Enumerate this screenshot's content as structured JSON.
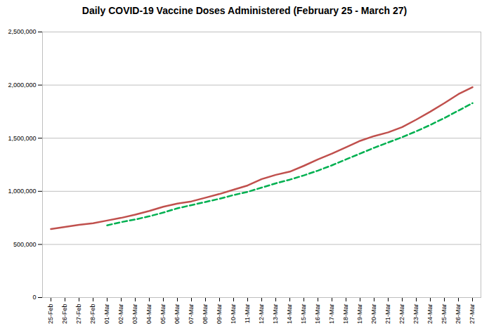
{
  "chart_data": {
    "type": "line",
    "title": "Daily COVID-19 Vaccine Doses Administered (February 25 - March 27)",
    "categories": [
      "25-Feb",
      "26-Feb",
      "27-Feb",
      "28-Feb",
      "01-Mar",
      "02-Mar",
      "03-Mar",
      "04-Mar",
      "05-Mar",
      "06-Mar",
      "07-Mar",
      "08-Mar",
      "09-Mar",
      "10-Mar",
      "11-Mar",
      "12-Mar",
      "13-Mar",
      "14-Mar",
      "15-Mar",
      "16-Mar",
      "17-Mar",
      "18-Mar",
      "19-Mar",
      "20-Mar",
      "21-Mar",
      "22-Mar",
      "23-Mar",
      "24-Mar",
      "25-Mar",
      "26-Mar",
      "27-Mar"
    ],
    "series": [
      {
        "color": "#c0504d",
        "line_style": "solid",
        "values": [
          645000,
          665000,
          685000,
          700000,
          725000,
          750000,
          780000,
          815000,
          855000,
          885000,
          905000,
          940000,
          975000,
          1015000,
          1055000,
          1115000,
          1155000,
          1185000,
          1240000,
          1300000,
          1355000,
          1415000,
          1475000,
          1520000,
          1555000,
          1605000,
          1675000,
          1750000,
          1830000,
          1915000,
          1980000
        ]
      },
      {
        "color": "#00b050",
        "line_style": "dashed",
        "values": [
          null,
          null,
          null,
          null,
          680000,
          710000,
          735000,
          765000,
          800000,
          840000,
          870000,
          900000,
          930000,
          965000,
          995000,
          1035000,
          1075000,
          1110000,
          1150000,
          1195000,
          1245000,
          1300000,
          1355000,
          1410000,
          1460000,
          1510000,
          1565000,
          1625000,
          1690000,
          1760000,
          1830000
        ]
      }
    ],
    "ylim": [
      0,
      2500000
    ],
    "yticks": [
      0,
      {
        "value": 500000,
        "label": "500,000"
      },
      {
        "value": 1000000,
        "label": "1,000,000"
      },
      {
        "value": 1500000,
        "label": "1,500,000"
      },
      {
        "value": 2000000,
        "label": "2,000,000"
      },
      {
        "value": 2500000,
        "label": "2,500,000"
      }
    ],
    "grid": true
  }
}
